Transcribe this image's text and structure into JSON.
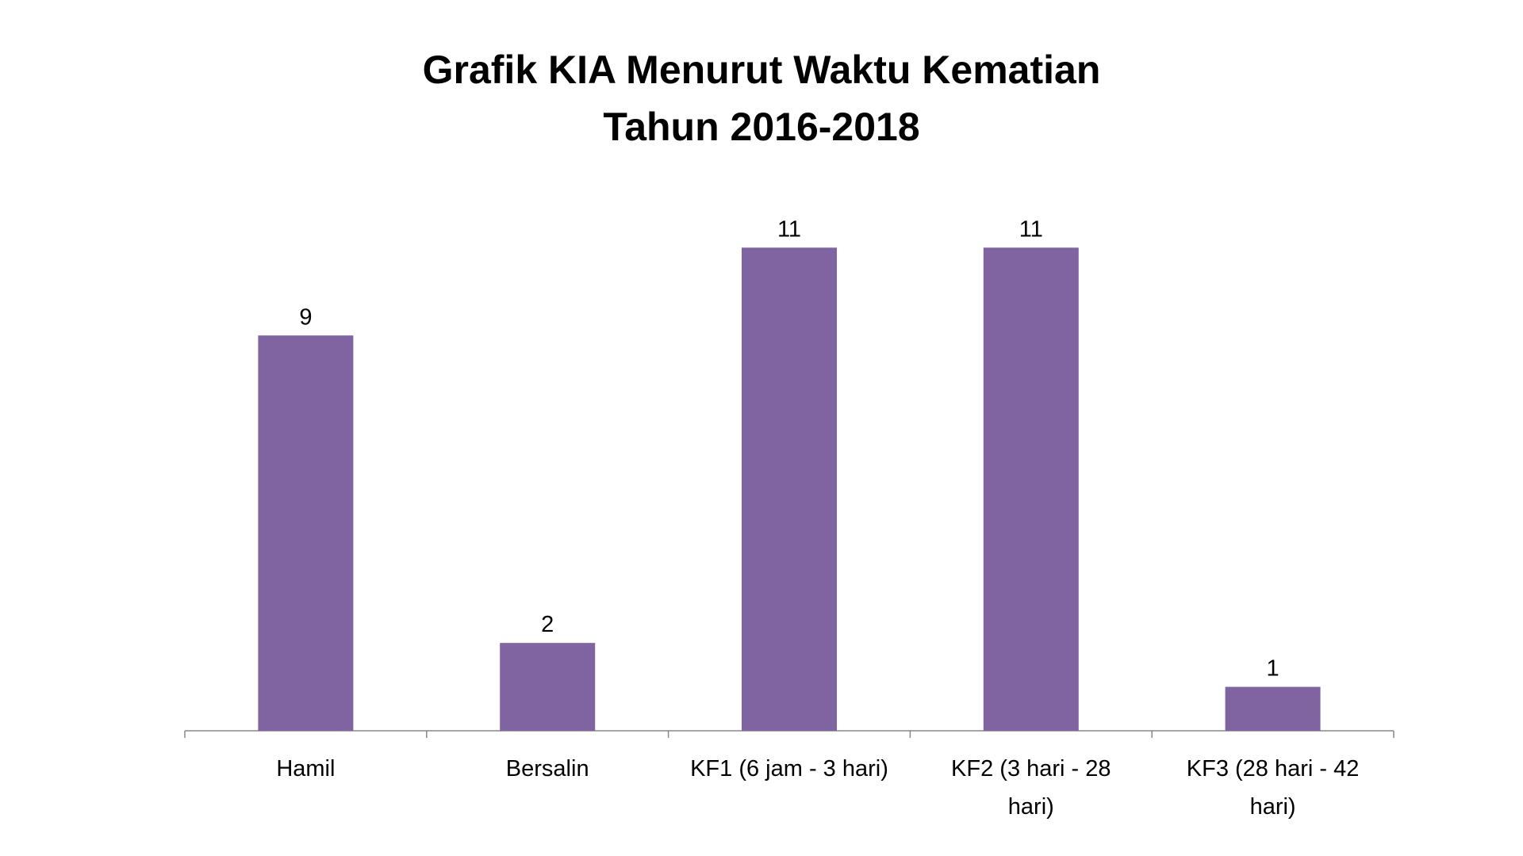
{
  "chart_data": {
    "type": "bar",
    "title": "Grafik KIA Menurut Waktu Kematian Tahun 2016-2018",
    "categories": [
      "Hamil",
      "Bersalin",
      "KF1 (6 jam - 3 hari)",
      "KF2 (3 hari - 28 hari)",
      "KF3 (28 hari - 42 hari)"
    ],
    "values": [
      9,
      2,
      11,
      11,
      1
    ],
    "color": "#8064a2",
    "ylim": [
      0,
      12
    ]
  }
}
